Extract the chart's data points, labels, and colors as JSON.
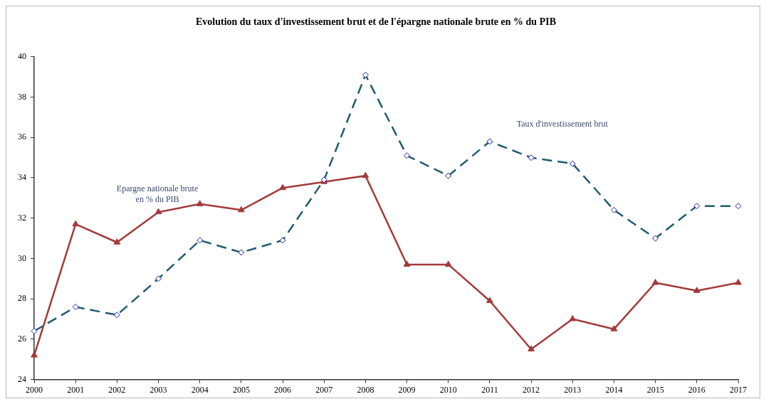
{
  "chart_data": {
    "type": "line",
    "title": "Evolution du taux d'investissement brut et de l'épargne nationale brute en % du PIB",
    "categories": [
      "2000",
      "2001",
      "2002",
      "2003",
      "2004",
      "2005",
      "2006",
      "2007",
      "2008",
      "2009",
      "2010",
      "2011",
      "2012",
      "2013",
      "2014",
      "2015",
      "2016",
      "2017"
    ],
    "series": [
      {
        "name": "Taux d'investissement brut",
        "color": "#1f5c6e",
        "marker": "diamond",
        "line_style": "dashed",
        "values": [
          26.4,
          27.6,
          27.2,
          29.0,
          30.9,
          30.3,
          30.9,
          33.9,
          39.1,
          35.1,
          34.1,
          35.8,
          35.0,
          34.7,
          32.4,
          31.0,
          32.6,
          32.6
        ]
      },
      {
        "name": "Epargne nationale brute\nen % du PIB",
        "color": "#a33a3a",
        "marker": "triangle",
        "line_style": "solid",
        "values": [
          25.2,
          31.7,
          30.8,
          32.3,
          32.7,
          32.4,
          33.5,
          33.8,
          34.1,
          29.7,
          29.7,
          27.9,
          25.5,
          27.0,
          26.5,
          28.8,
          28.4,
          28.8
        ]
      }
    ],
    "ylim": [
      24,
      40
    ],
    "yticks": [
      24,
      26,
      28,
      30,
      32,
      34,
      36,
      38,
      40
    ],
    "grid": false,
    "legend": false
  }
}
